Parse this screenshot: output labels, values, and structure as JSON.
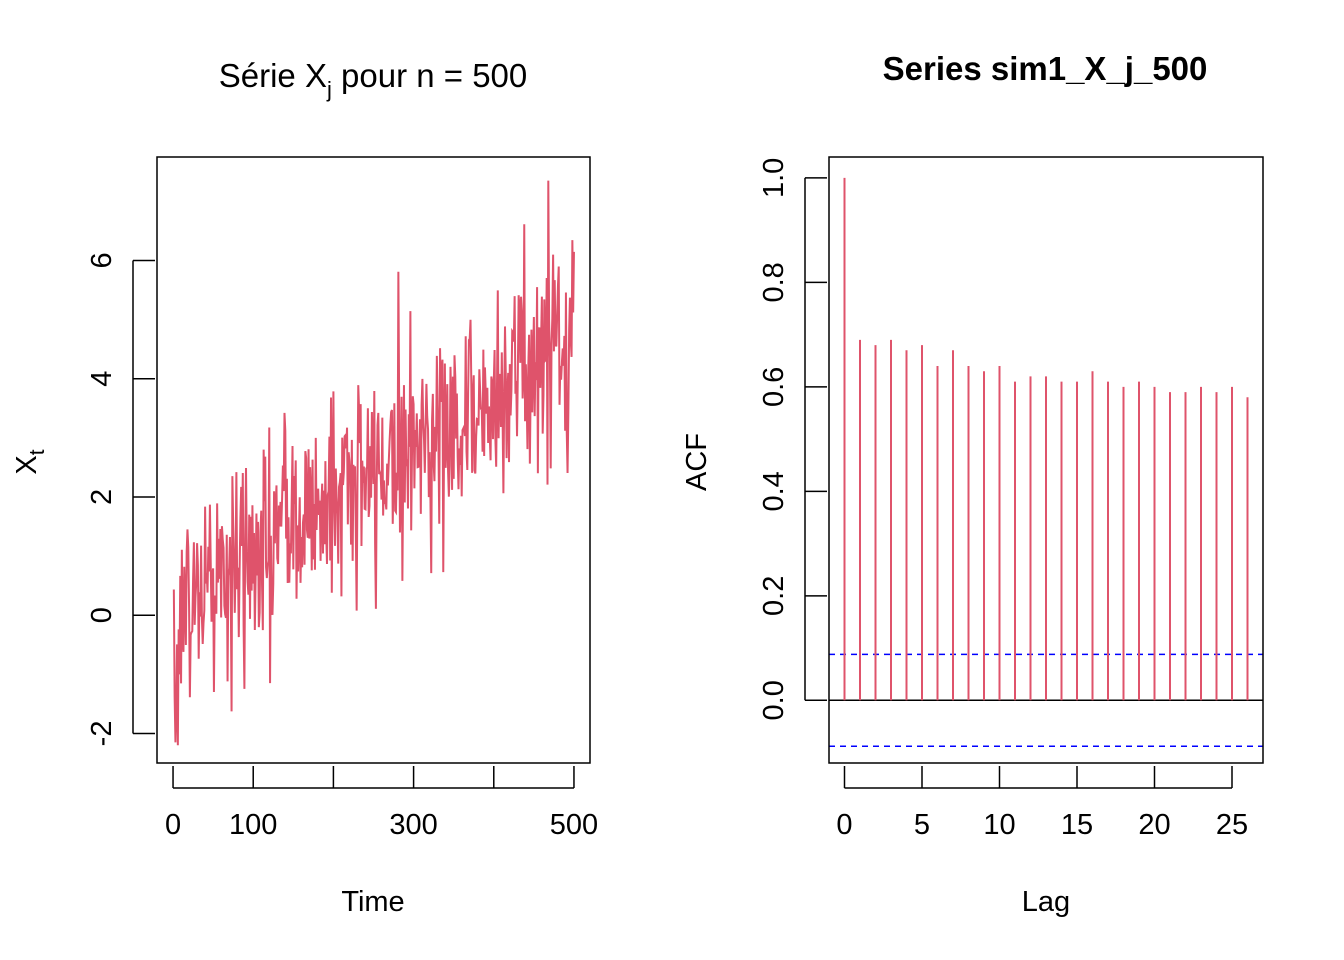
{
  "colors": {
    "series": "#DF536B",
    "ci": "#0000FF",
    "axis": "#000000",
    "background": "#FFFFFF"
  },
  "chart_data": [
    {
      "type": "line",
      "title": {
        "prefix": "Série X",
        "subscript": "j",
        "suffix": " pour n =  500"
      },
      "xlabel": "Time",
      "ylabel": {
        "base": "X",
        "subscript": "t"
      },
      "xlim": [
        -20,
        520
      ],
      "ylim": [
        -2.5,
        7.75
      ],
      "xticks": [
        0,
        100,
        200,
        300,
        400,
        500
      ],
      "xtick_labels": [
        "0",
        "100",
        "",
        "300",
        "",
        "500"
      ],
      "yticks": [
        -2,
        0,
        2,
        4,
        6
      ],
      "ytick_labels": [
        "-2",
        "0",
        "2",
        "4",
        "6"
      ],
      "n": 500,
      "anchors_x": [
        1,
        5,
        10,
        20,
        30,
        40,
        50,
        60,
        70,
        80,
        90,
        100,
        110,
        120,
        130,
        140,
        150,
        160,
        170,
        180,
        190,
        200,
        210,
        220,
        230,
        240,
        250,
        260,
        270,
        280,
        290,
        300,
        310,
        320,
        330,
        340,
        350,
        360,
        370,
        380,
        390,
        400,
        410,
        420,
        430,
        440,
        450,
        460,
        470,
        480,
        490,
        500
      ],
      "anchors_y": [
        -0.4,
        -0.8,
        0.0,
        0.2,
        0.3,
        0.5,
        0.6,
        0.8,
        0.4,
        0.9,
        0.7,
        1.0,
        1.2,
        0.9,
        1.5,
        1.6,
        1.7,
        1.3,
        1.9,
        1.8,
        2.1,
        2.0,
        2.2,
        2.3,
        2.0,
        2.4,
        2.2,
        2.5,
        2.8,
        2.9,
        3.0,
        2.7,
        3.1,
        3.0,
        3.2,
        3.3,
        3.0,
        3.4,
        3.5,
        3.3,
        3.6,
        3.8,
        4.0,
        3.9,
        4.1,
        4.2,
        4.4,
        4.3,
        4.5,
        4.6,
        4.4,
        4.7
      ],
      "noise_sd": 0.9,
      "min_point": {
        "x": 3,
        "y": -2.15
      },
      "max_point": {
        "x": 468,
        "y": 7.35
      }
    },
    {
      "type": "bar",
      "title": "Series  sim1_X_j_500",
      "xlabel": "Lag",
      "ylabel": "ACF",
      "xlim": [
        -1,
        27
      ],
      "ylim": [
        -0.12,
        1.04
      ],
      "xticks": [
        0,
        5,
        10,
        15,
        20,
        25
      ],
      "xtick_labels": [
        "0",
        "5",
        "10",
        "15",
        "20",
        "25"
      ],
      "yticks": [
        0.0,
        0.2,
        0.4,
        0.6,
        0.8,
        1.0
      ],
      "ytick_labels": [
        "0.0",
        "0.2",
        "0.4",
        "0.6",
        "0.8",
        "1.0"
      ],
      "lags": [
        0,
        1,
        2,
        3,
        4,
        5,
        6,
        7,
        8,
        9,
        10,
        11,
        12,
        13,
        14,
        15,
        16,
        17,
        18,
        19,
        20,
        21,
        22,
        23,
        24,
        25,
        26
      ],
      "acf": [
        1.0,
        0.69,
        0.68,
        0.69,
        0.67,
        0.68,
        0.64,
        0.67,
        0.64,
        0.63,
        0.64,
        0.61,
        0.62,
        0.62,
        0.61,
        0.61,
        0.63,
        0.61,
        0.6,
        0.61,
        0.6,
        0.59,
        0.59,
        0.6,
        0.59,
        0.6,
        0.58
      ],
      "ci": 0.088
    }
  ]
}
